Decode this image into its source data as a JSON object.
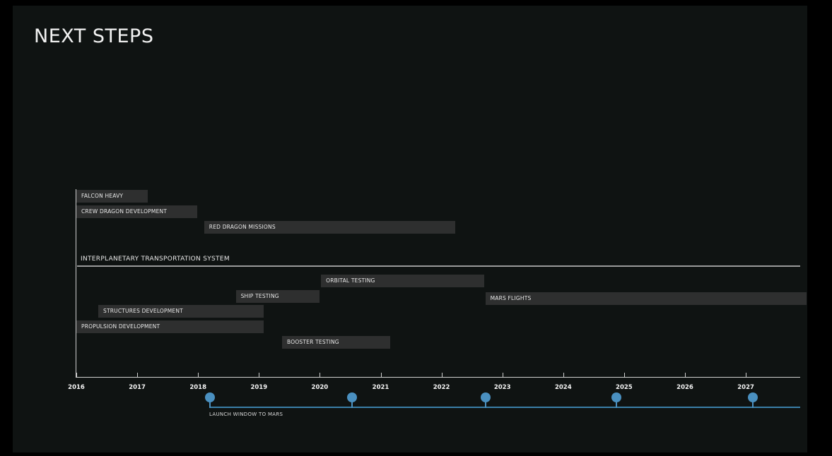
{
  "title": "NEXT STEPS",
  "years": [
    "2016",
    "2017",
    "2018",
    "2019",
    "2020",
    "2021",
    "2022",
    "2023",
    "2024",
    "2025",
    "2026",
    "2027"
  ],
  "tasks": [
    {
      "label": "FALCON HEAVY",
      "start": 2016.0,
      "end": 2017.17
    },
    {
      "label": "CREW DRAGON DEVELOPMENT",
      "start": 2016.0,
      "end": 2017.99
    },
    {
      "label": "RED DRAGON MISSIONS",
      "start": 2018.1,
      "end": 2022.22
    },
    {
      "label": "ORBITAL TESTING",
      "start": 2020.02,
      "end": 2022.7
    },
    {
      "label": "SHIP TESTING",
      "start": 2018.62,
      "end": 2020.0
    },
    {
      "label": "MARS FLIGHTS",
      "start": 2022.72,
      "end": 2028.0
    },
    {
      "label": "STRUCTURES DEVELOPMENT",
      "start": 2016.36,
      "end": 2019.08
    },
    {
      "label": "PROPULSION DEVELOPMENT",
      "start": 2016.0,
      "end": 2019.08
    },
    {
      "label": "BOOSTER TESTING",
      "start": 2019.38,
      "end": 2021.16
    }
  ],
  "section_label": "INTERPLANETARY TRANSPORTATION SYSTEM",
  "launch_windows": [
    2018.2,
    2020.53,
    2022.73,
    2024.87,
    2027.12
  ],
  "launch_label": "LAUNCH WINDOW TO MARS",
  "colors": {
    "bar": "#2e2f2f",
    "marker": "#4a90c0",
    "background": "#0f1312"
  }
}
